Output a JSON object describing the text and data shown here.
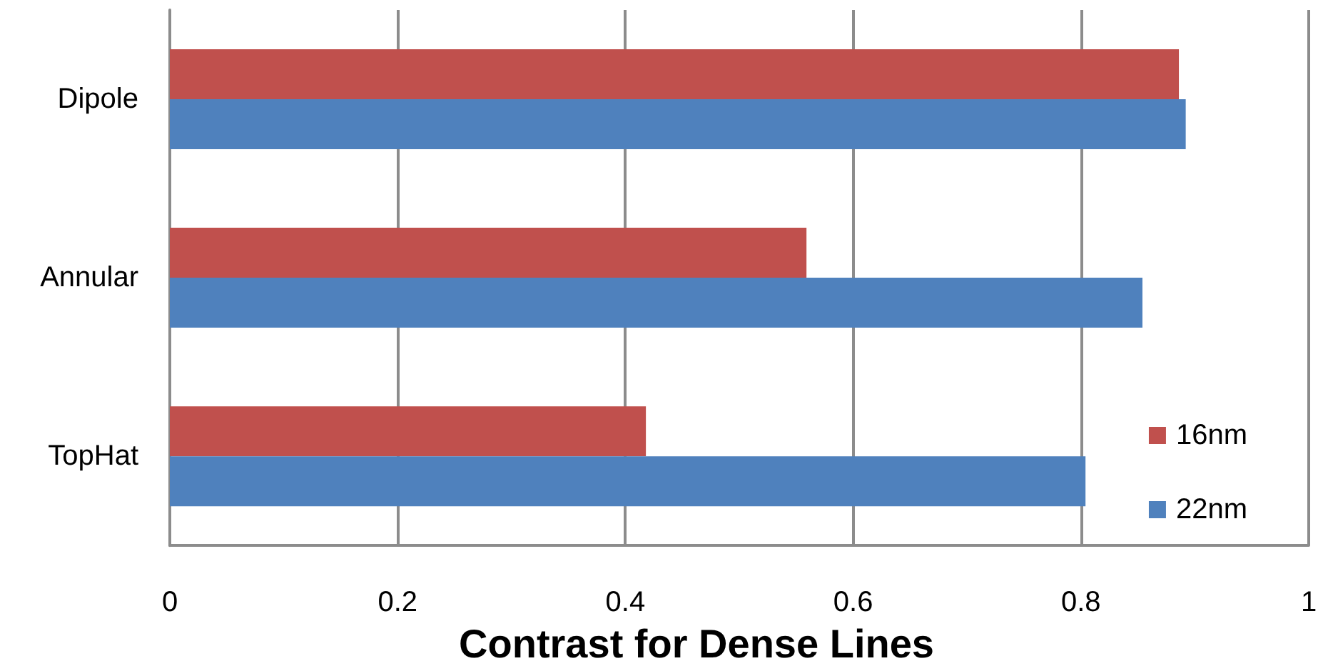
{
  "chart_data": {
    "type": "bar",
    "orientation": "horizontal",
    "xlabel": "Contrast for Dense Lines",
    "categories": [
      "Dipole",
      "Annular",
      "TopHat"
    ],
    "series": [
      {
        "name": "16nm",
        "color": "#c0504d",
        "values": [
          0.886,
          0.559,
          0.418
        ]
      },
      {
        "name": "22nm",
        "color": "#4f81bd",
        "values": [
          0.892,
          0.854,
          0.804
        ]
      }
    ],
    "xlim": [
      0,
      1
    ],
    "xticks": [
      0,
      0.2,
      0.4,
      0.6,
      0.8,
      1
    ],
    "grid": "x",
    "legend": "bottom right"
  }
}
